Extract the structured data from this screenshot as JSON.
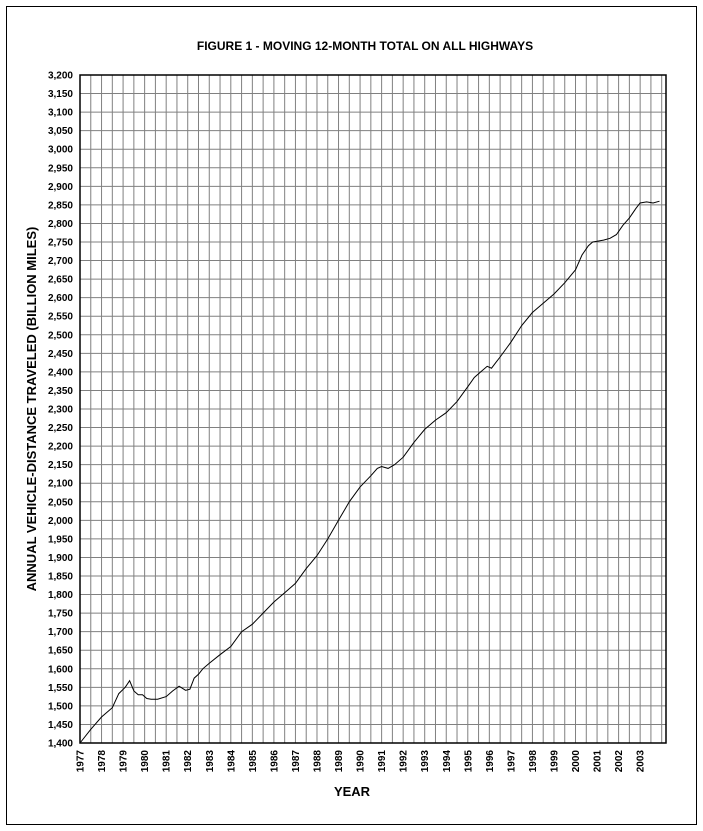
{
  "chart_data": {
    "type": "line",
    "title": "FIGURE 1 - MOVING 12-MONTH TOTAL ON ALL HIGHWAYS",
    "xlabel": "YEAR",
    "ylabel": "ANNUAL VEHICLE-DISTANCE TRAVELED (BILLION MILES)",
    "xlim": [
      1977,
      2004.2
    ],
    "ylim": [
      1400,
      3200
    ],
    "ytick_step": 50,
    "grid": true,
    "x_ticks": [
      "1977",
      "1978",
      "1979",
      "1980",
      "1981",
      "1982",
      "1983",
      "1984",
      "1985",
      "1986",
      "1987",
      "1988",
      "1989",
      "1990",
      "1991",
      "1992",
      "1993",
      "1994",
      "1995",
      "1996",
      "1997",
      "1998",
      "1999",
      "2000",
      "2001",
      "2002",
      "2003"
    ],
    "y_ticks": [
      "1,400",
      "1,450",
      "1,500",
      "1,550",
      "1,600",
      "1,650",
      "1,700",
      "1,750",
      "1,800",
      "1,850",
      "1,900",
      "1,950",
      "2,000",
      "2,050",
      "2,100",
      "2,150",
      "2,200",
      "2,250",
      "2,300",
      "2,350",
      "2,400",
      "2,450",
      "2,500",
      "2,550",
      "2,600",
      "2,650",
      "2,700",
      "2,750",
      "2,800",
      "2,850",
      "2,900",
      "2,950",
      "3,000",
      "3,050",
      "3,100",
      "3,150",
      "3,200"
    ],
    "series": [
      {
        "color": "#000000",
        "x": [
          1977.0,
          1977.5,
          1978.0,
          1978.5,
          1978.8,
          1979.1,
          1979.3,
          1979.5,
          1979.7,
          1979.9,
          1980.1,
          1980.3,
          1980.6,
          1981.0,
          1981.3,
          1981.6,
          1981.9,
          1982.1,
          1982.3,
          1982.5,
          1982.7,
          1983.0,
          1983.5,
          1984.0,
          1984.5,
          1985.0,
          1985.5,
          1986.0,
          1986.5,
          1987.0,
          1987.5,
          1988.0,
          1988.5,
          1989.0,
          1989.5,
          1990.0,
          1990.5,
          1990.8,
          1991.0,
          1991.3,
          1991.6,
          1992.0,
          1992.5,
          1993.0,
          1993.5,
          1994.0,
          1994.5,
          1995.0,
          1995.3,
          1995.6,
          1995.9,
          1996.1,
          1996.3,
          1996.5,
          1997.0,
          1997.5,
          1998.0,
          1998.5,
          1999.0,
          1999.5,
          2000.0,
          2000.3,
          2000.6,
          2000.8,
          2001.0,
          2001.3,
          2001.6,
          2001.9,
          2002.2,
          2002.5,
          2002.8,
          2003.0,
          2003.3,
          2003.6,
          2003.9
        ],
        "y": [
          1400,
          1437,
          1470,
          1495,
          1533,
          1550,
          1568,
          1540,
          1530,
          1530,
          1520,
          1518,
          1518,
          1525,
          1540,
          1553,
          1542,
          1545,
          1575,
          1585,
          1600,
          1615,
          1638,
          1660,
          1700,
          1720,
          1750,
          1780,
          1805,
          1830,
          1870,
          1905,
          1950,
          2000,
          2050,
          2090,
          2120,
          2140,
          2145,
          2140,
          2150,
          2170,
          2210,
          2245,
          2270,
          2290,
          2320,
          2360,
          2385,
          2400,
          2415,
          2410,
          2425,
          2440,
          2480,
          2525,
          2560,
          2585,
          2610,
          2640,
          2675,
          2715,
          2740,
          2750,
          2752,
          2755,
          2760,
          2770,
          2795,
          2815,
          2840,
          2855,
          2858,
          2855,
          2860
        ]
      }
    ]
  }
}
